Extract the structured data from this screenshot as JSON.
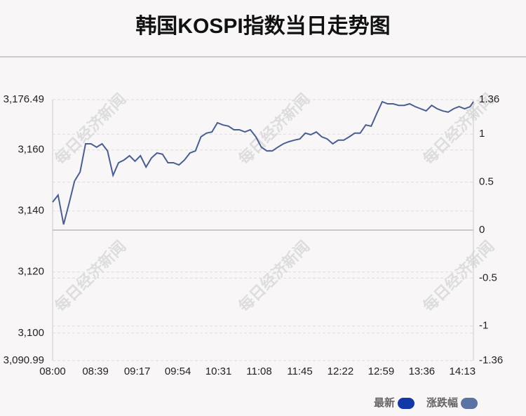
{
  "chart_data": {
    "type": "line",
    "title": "韩国KOSPI指数当日走势图",
    "watermark": "每日经济新闻",
    "x": [
      "08:00",
      "08:05",
      "08:10",
      "08:15",
      "08:20",
      "08:25",
      "08:30",
      "08:35",
      "08:40",
      "08:45",
      "08:50",
      "08:55",
      "09:00",
      "09:05",
      "09:10",
      "09:15",
      "09:20",
      "09:25",
      "09:30",
      "09:35",
      "09:40",
      "09:45",
      "09:50",
      "09:55",
      "10:00",
      "10:05",
      "10:10",
      "10:15",
      "10:20",
      "10:25",
      "10:30",
      "10:35",
      "10:40",
      "10:45",
      "10:50",
      "10:55",
      "11:00",
      "11:05",
      "11:10",
      "11:15",
      "11:20",
      "11:25",
      "11:30",
      "11:35",
      "11:40",
      "11:45",
      "11:50",
      "11:55",
      "12:00",
      "12:05",
      "12:10",
      "12:15",
      "12:20",
      "12:25",
      "12:30",
      "12:35",
      "12:40",
      "12:45",
      "12:50",
      "12:55",
      "13:00",
      "13:05",
      "13:10",
      "13:15",
      "13:20",
      "13:25",
      "13:30",
      "13:35",
      "13:40",
      "13:45",
      "13:50",
      "13:55",
      "14:00",
      "14:05",
      "14:10",
      "14:15",
      "14:20",
      "14:23"
    ],
    "xlim": [
      "08:00",
      "14:23"
    ],
    "xticks": [
      "08:00",
      "08:39",
      "09:17",
      "09:54",
      "10:31",
      "11:08",
      "11:45",
      "12:22",
      "12:59",
      "13:36",
      "14:13"
    ],
    "series": [
      {
        "color": "#4a5e91",
        "values": [
          3142.9,
          3145.2,
          3135.6,
          3142.5,
          3149.8,
          3152.8,
          3162.0,
          3162.0,
          3160.9,
          3162.0,
          3159.7,
          3151.7,
          3155.8,
          3156.7,
          3158.1,
          3156.3,
          3158.1,
          3154.4,
          3157.4,
          3159.0,
          3158.6,
          3155.8,
          3155.8,
          3155.1,
          3156.7,
          3159.0,
          3159.7,
          3164.3,
          3165.5,
          3165.9,
          3168.9,
          3168.2,
          3167.8,
          3166.6,
          3166.6,
          3165.9,
          3166.6,
          3164.3,
          3160.9,
          3159.7,
          3159.7,
          3160.9,
          3162.0,
          3162.7,
          3163.2,
          3163.6,
          3165.5,
          3165.0,
          3165.9,
          3164.3,
          3163.6,
          3162.0,
          3163.2,
          3163.2,
          3164.3,
          3165.5,
          3165.5,
          3168.2,
          3167.8,
          3171.9,
          3175.8,
          3175.1,
          3175.1,
          3174.6,
          3174.6,
          3175.1,
          3174.2,
          3173.5,
          3172.8,
          3174.6,
          3173.5,
          3172.8,
          3172.4,
          3173.5,
          3174.2,
          3173.5,
          3174.2,
          3175.8
        ]
      }
    ],
    "ylim": [
      3090.99,
      3176.49
    ],
    "yticks": [
      {
        "value": 3090.99,
        "label": "3,090.99"
      },
      {
        "value": 3100,
        "label": "3,100"
      },
      {
        "value": 3120,
        "label": "3,120"
      },
      {
        "value": 3140,
        "label": "3,140"
      },
      {
        "value": 3160,
        "label": "3,160"
      },
      {
        "value": 3176.49,
        "label": "3,176.49"
      }
    ],
    "y2lim": [
      -1.36,
      1.36
    ],
    "y2ticks": [
      -1.36,
      -1,
      -0.5,
      0,
      0.5,
      1,
      1.36
    ],
    "grid": true,
    "legend": [
      {
        "name": "最新",
        "color": "#1238a8"
      },
      {
        "name": "涨跌幅",
        "color": "#5b73a3"
      }
    ]
  }
}
